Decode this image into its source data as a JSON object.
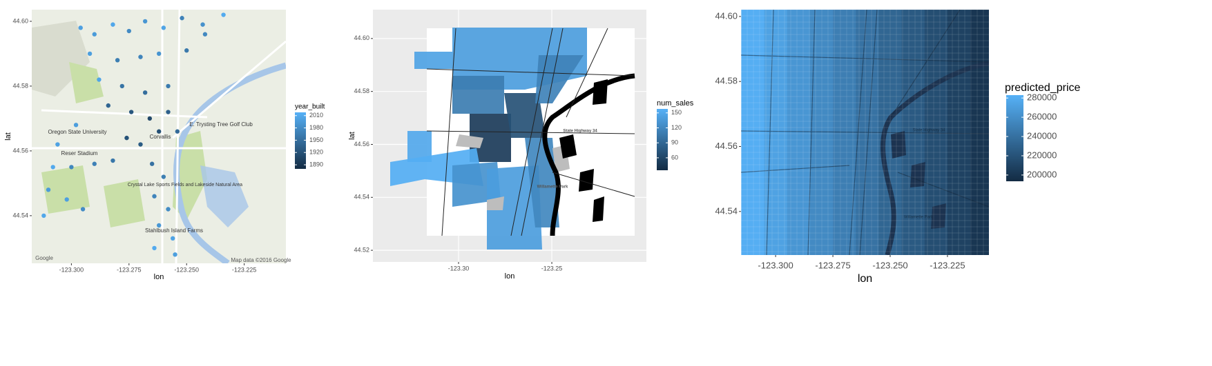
{
  "chart_data": [
    {
      "type": "scatter",
      "xlabel": "lon",
      "ylabel": "lat",
      "xlim": [
        -123.3172,
        -123.2069
      ],
      "ylim": [
        44.5253,
        44.6036
      ],
      "xticks": [
        {
          "value": -123.3,
          "label": "-123.300"
        },
        {
          "value": -123.275,
          "label": "-123.275"
        },
        {
          "value": -123.25,
          "label": "-123.250"
        },
        {
          "value": -123.225,
          "label": "-123.225"
        }
      ],
      "yticks": [
        {
          "value": 44.6,
          "label": "44.60"
        },
        44.58,
        44.56,
        44.54
      ],
      "legend_title": "year_built",
      "legend_ticks": [
        2010,
        1980,
        1950,
        1920,
        1890
      ],
      "clim": [
        1880,
        2018
      ],
      "low_color": "#132b43",
      "high_color": "#56b1f7",
      "x": [
        -123.296,
        -123.29,
        -123.282,
        -123.275,
        -123.268,
        -123.26,
        -123.252,
        -123.243,
        -123.234,
        -123.292,
        -123.28,
        -123.27,
        -123.262,
        -123.25,
        -123.288,
        -123.278,
        -123.268,
        -123.258,
        -123.284,
        -123.274,
        -123.266,
        -123.258,
        -123.262,
        -123.254,
        -123.298,
        -123.306,
        -123.308,
        -123.3,
        -123.29,
        -123.282,
        -123.31,
        -123.302,
        -123.295,
        -123.312,
        -123.265,
        -123.26,
        -123.264,
        -123.258,
        -123.262,
        -123.256,
        -123.264,
        -123.255,
        -123.27,
        -123.276,
        -123.242
      ],
      "y": [
        44.598,
        44.596,
        44.599,
        44.597,
        44.6,
        44.598,
        44.601,
        44.599,
        44.602,
        44.59,
        44.588,
        44.589,
        44.59,
        44.591,
        44.582,
        44.58,
        44.578,
        44.58,
        44.574,
        44.572,
        44.57,
        44.572,
        44.566,
        44.566,
        44.568,
        44.562,
        44.555,
        44.555,
        44.556,
        44.557,
        44.548,
        44.545,
        44.542,
        44.54,
        44.556,
        44.552,
        44.546,
        44.542,
        44.537,
        44.533,
        44.53,
        44.528,
        44.562,
        44.564,
        44.596
      ],
      "values": [
        2001,
        1995,
        2008,
        1978,
        1990,
        2005,
        1970,
        1985,
        2012,
        1999,
        1965,
        1972,
        1988,
        1960,
        2006,
        1955,
        1948,
        1962,
        1940,
        1925,
        1910,
        1935,
        1918,
        1945,
        1998,
        2003,
        2010,
        1975,
        1968,
        1958,
        1995,
        2000,
        1980,
        2008,
        1952,
        1966,
        1972,
        1980,
        1992,
        2004,
        2011,
        1999,
        1930,
        1920,
        1976
      ],
      "annotations": [
        "Oregon State University",
        "Corvallis",
        "Reser Stadium",
        "E. Trysting Tree Golf Club",
        "Crystal Lake Sports Fields and Lakeside Natural Area",
        "Stahlbush Island Farms",
        "Google",
        "Map data ©2016 Google"
      ]
    },
    {
      "type": "choropleth",
      "xlabel": "lon",
      "ylabel": "lat",
      "xlim": [
        -123.3459,
        -123.1993
      ],
      "ylim": [
        44.5156,
        44.6109
      ],
      "xticks": [
        {
          "value": -123.3,
          "label": "-123.30"
        },
        -123.25
      ],
      "yticks": [
        {
          "value": 44.6,
          "label": "44.60"
        },
        44.58,
        44.56,
        44.54,
        44.52
      ],
      "grid": true,
      "legend_title": "num_sales",
      "legend_ticks": [
        150,
        120,
        90,
        60
      ],
      "clim": [
        35,
        158
      ],
      "low_color": "#132b43",
      "high_color": "#56b1f7",
      "values": [
        140,
        145,
        110,
        50,
        70,
        150,
        155,
        130,
        140,
        120,
        115
      ],
      "annotations": [
        "State Highway 34",
        "Willamette Park"
      ]
    },
    {
      "type": "heatmap",
      "xlabel": "lon",
      "xlim": [
        -123.3151,
        -123.2069
      ],
      "ylim": [
        44.5266,
        44.6021
      ],
      "xticks": [
        {
          "value": -123.3,
          "label": "-123.300"
        },
        {
          "value": -123.275,
          "label": "-123.275"
        },
        {
          "value": -123.25,
          "label": "-123.250"
        },
        {
          "value": -123.225,
          "label": "-123.225"
        }
      ],
      "yticks": [
        {
          "value": 44.6,
          "label": "44.60"
        },
        44.58,
        44.56,
        44.54
      ],
      "legend_title": "predicted_price",
      "legend_ticks": [
        280000,
        260000,
        240000,
        220000,
        200000
      ],
      "clim": [
        193500,
        283000
      ],
      "low_color": "#132b43",
      "high_color": "#56b1f7",
      "x": [
        -123.31,
        -123.3,
        -123.29,
        -123.28,
        -123.27,
        -123.26,
        -123.25,
        -123.24,
        -123.23,
        -123.22,
        -123.21
      ],
      "values": [
        281000,
        273000,
        265000,
        257000,
        249000,
        241000,
        233000,
        225000,
        217000,
        209000,
        201000
      ],
      "annotations": [
        "State Highway 34",
        "Willamette Park"
      ]
    }
  ]
}
